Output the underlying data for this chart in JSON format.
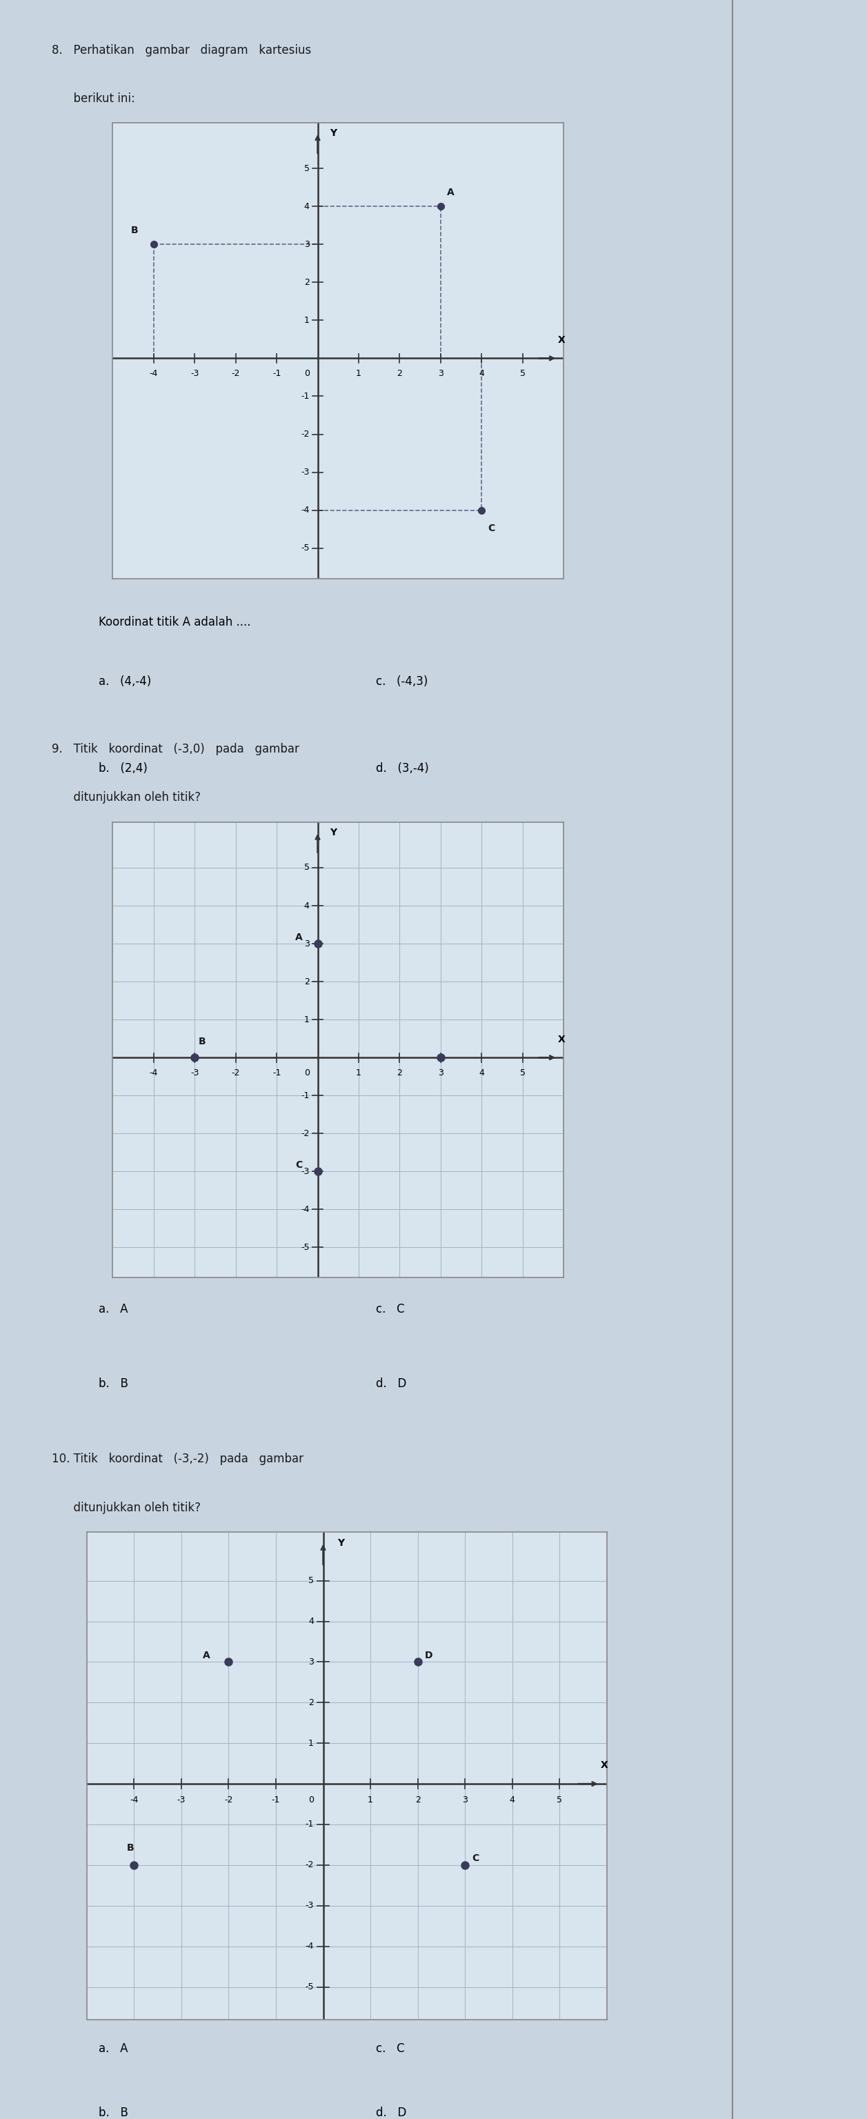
{
  "page_bg": "#c8d4e0",
  "plot_bg": "#d8e4ee",
  "border_color": "#888888",
  "point_color": "#3a3a5a",
  "grid_color": "#a0b4c4",
  "axis_color": "#333333",
  "text_color": "#1a1a1a",
  "question8": {
    "header_line1": "8.   Perhatikan   gambar   diagram   kartesius",
    "header_line2": "      berikut ini:",
    "points_q8": {
      "A": [
        3,
        4
      ],
      "B": [
        -4,
        3
      ],
      "C": [
        4,
        -4
      ]
    },
    "dashed_A": [
      [
        0,
        3
      ],
      [
        4,
        4
      ],
      [
        3,
        0
      ],
      [
        3,
        4
      ]
    ],
    "dashed_B": [
      [
        -4,
        0
      ],
      [
        0,
        3
      ],
      [
        -4,
        0
      ],
      [
        -4,
        3
      ]
    ],
    "dashed_C": [
      [
        0,
        4
      ],
      [
        -4,
        -4
      ],
      [
        4,
        0
      ],
      [
        4,
        -4
      ]
    ],
    "choices_q8": [
      [
        "a.   (4,-4)",
        "c.   (-4,3)"
      ],
      [
        "b.   (2,4)",
        "d.   (3,-4)"
      ]
    ]
  },
  "question9": {
    "header_line1": "9.   Titik   koordinat   (-3,0)   pada   gambar",
    "header_line2": "      ditunjukkan oleh titik?",
    "points_q9": {
      "A": [
        0,
        3
      ],
      "B": [
        -3,
        0
      ],
      "C": [
        0,
        -3
      ],
      "D": [
        3,
        0
      ]
    },
    "choices_q9": [
      [
        "a.   A",
        "c.   C"
      ],
      [
        "b.   B",
        "d.   D"
      ]
    ]
  },
  "question10": {
    "header_line1": "10. Titik   koordinat   (-3,-2)   pada   gambar",
    "header_line2": "      ditunjukkan oleh titik?",
    "points_q10": {
      "A": [
        -2,
        3
      ],
      "B": [
        -4,
        -2
      ],
      "C": [
        3,
        -2
      ],
      "D": [
        2,
        3
      ]
    },
    "choices_q10": [
      [
        "a.   A",
        "c.   C"
      ],
      [
        "b.   B",
        "d.   D"
      ]
    ]
  },
  "xlim": [
    -5,
    6
  ],
  "ylim": [
    -5.8,
    6.2
  ],
  "xticks": [
    -4,
    -3,
    -2,
    -1,
    0,
    1,
    2,
    3,
    4,
    5
  ],
  "yticks": [
    -5,
    -4,
    -3,
    -2,
    -1,
    1,
    2,
    3,
    4,
    5
  ]
}
